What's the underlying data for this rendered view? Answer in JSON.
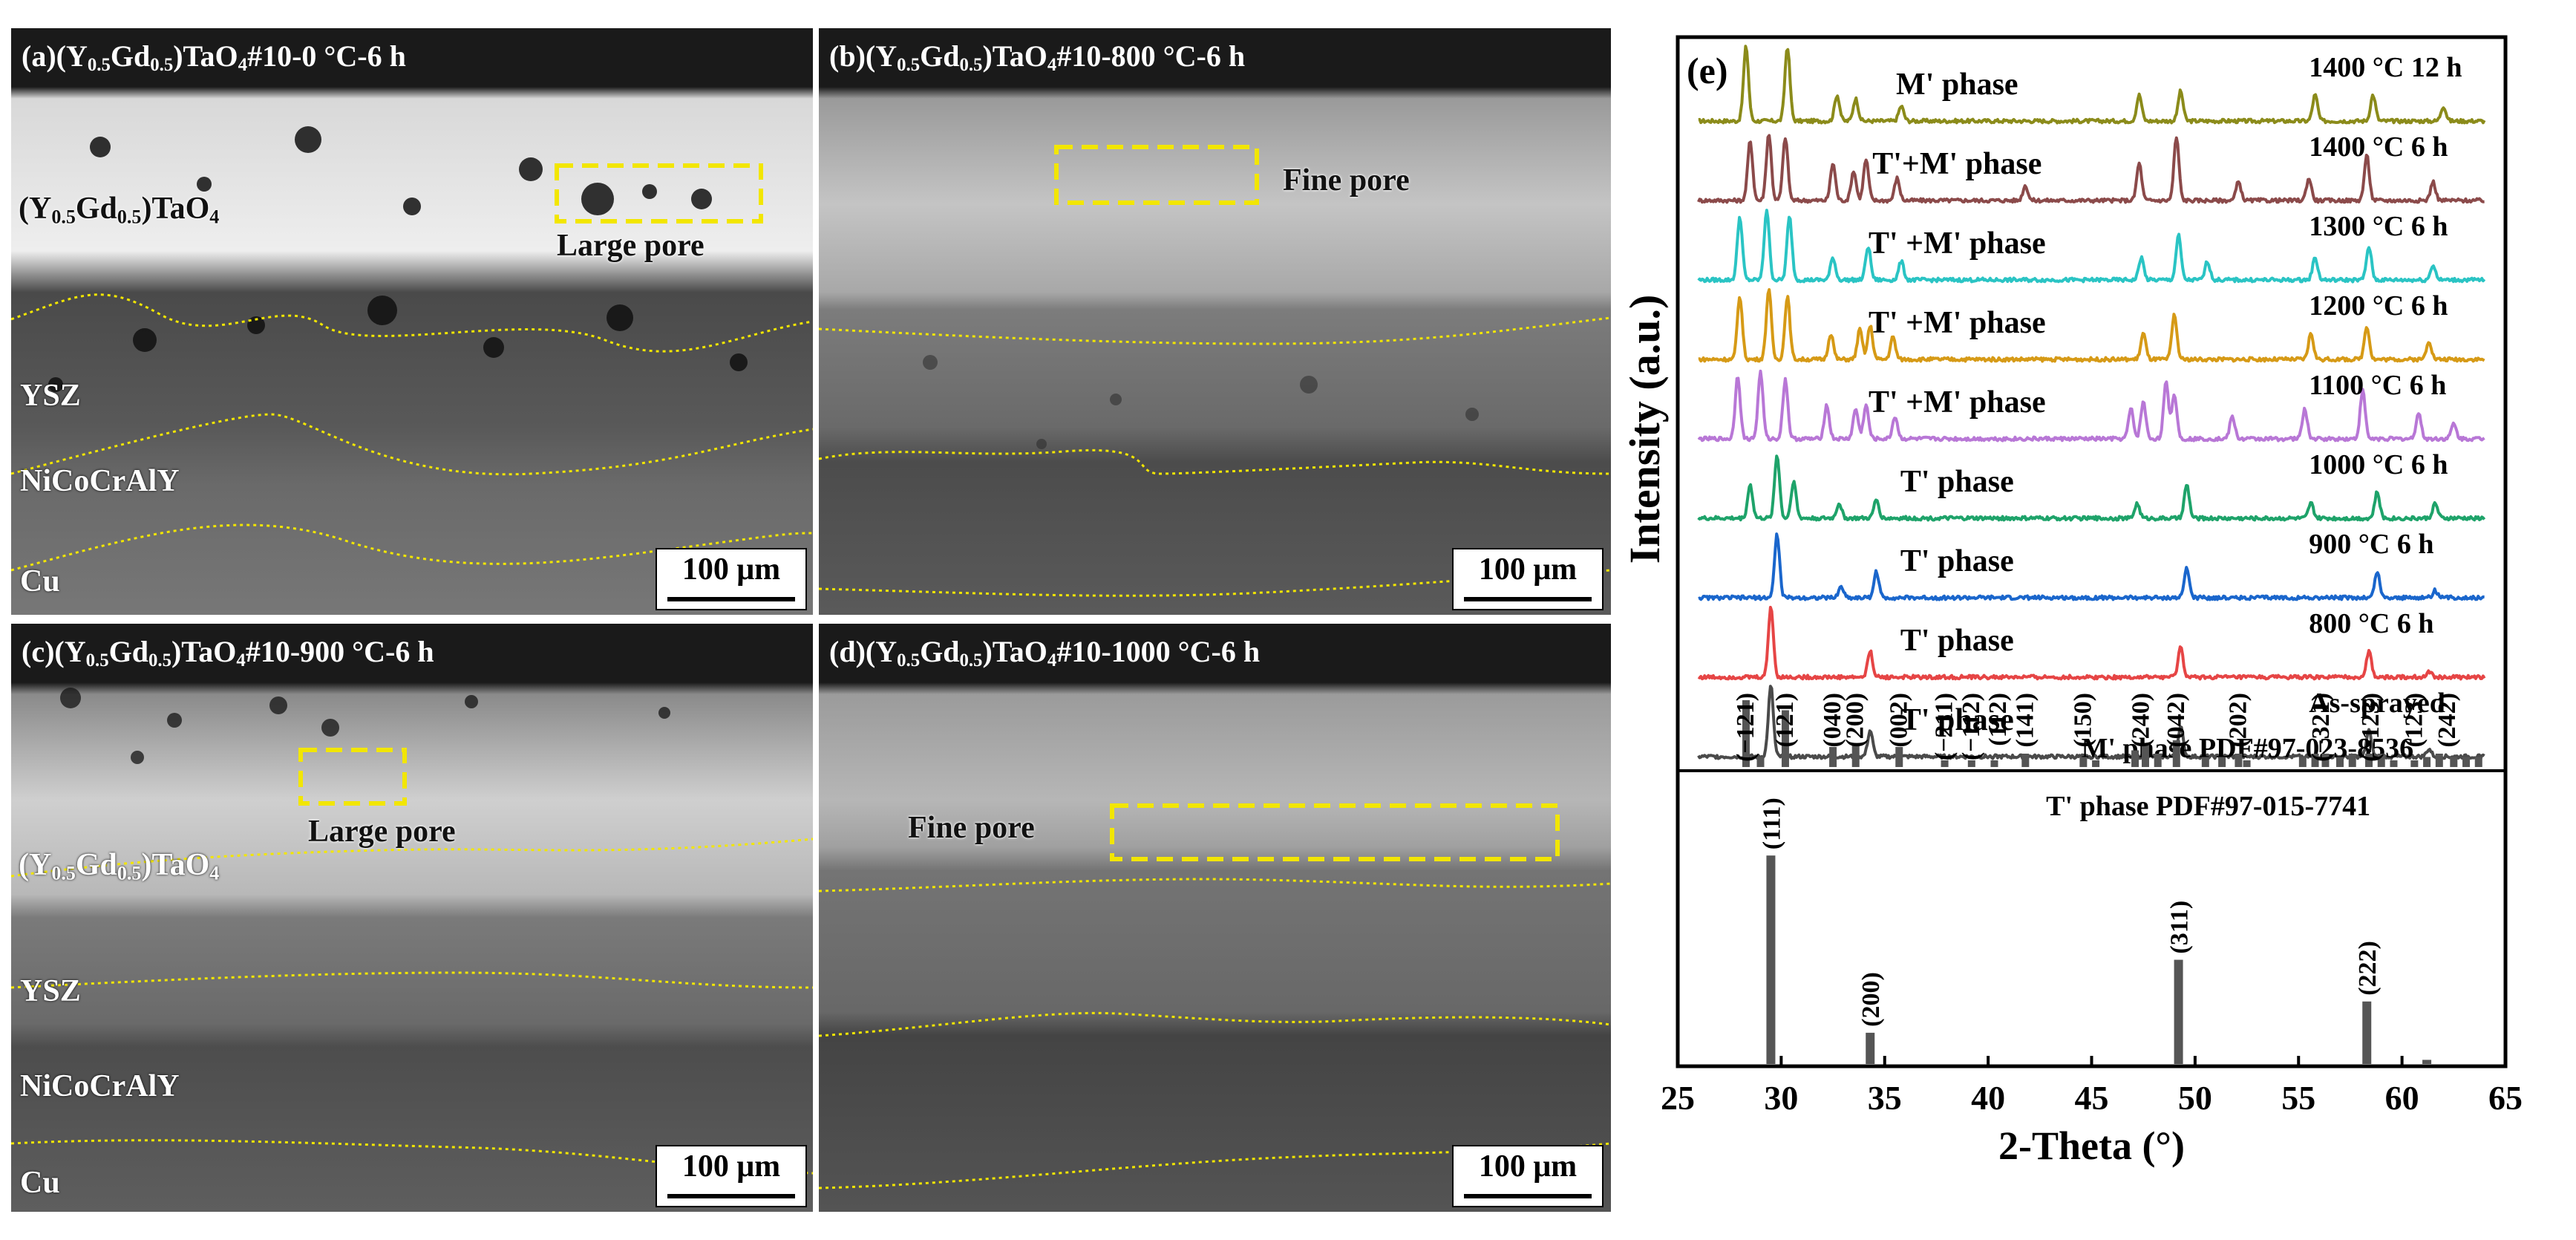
{
  "panels": [
    {
      "id": "a",
      "title_pre": "(a)(Y",
      "s1": "0.5",
      "mid": "Gd",
      "s2": "0.5",
      "post": ")TaO",
      "s3": "4",
      "tail": "#10-0 °C-6 h",
      "labels": {
        "coat": "(Y0.5Gd0.5)TaO4",
        "pore": "Large pore",
        "ysz": "YSZ",
        "bond": "NiCoCrAlY",
        "sub": "Cu"
      },
      "scale": "100 μm"
    },
    {
      "id": "b",
      "title_pre": "(b)(Y",
      "s1": "0.5",
      "mid": "Gd",
      "s2": "0.5",
      "post": ")TaO",
      "s3": "4",
      "tail": "#10-800 °C-6 h",
      "labels": {
        "pore": "Fine pore"
      },
      "scale": "100 μm"
    },
    {
      "id": "c",
      "title_pre": "(c)(Y",
      "s1": "0.5",
      "mid": "Gd",
      "s2": "0.5",
      "post": ")TaO",
      "s3": "4",
      "tail": "#10-900 °C-6 h",
      "labels": {
        "coat": "(Y0.5Gd0.5)TaO4",
        "pore": "Large pore",
        "ysz": "YSZ",
        "bond": "NiCoCrAlY",
        "sub": "Cu"
      },
      "scale": "100 μm"
    },
    {
      "id": "d",
      "title_pre": "(d)(Y",
      "s1": "0.5",
      "mid": "Gd",
      "s2": "0.5",
      "post": ")TaO",
      "s3": "4",
      "tail": "#10-1000 °C-6 h",
      "labels": {
        "pore": "Fine pore"
      },
      "scale": "100 μm"
    }
  ],
  "chart_data": {
    "type": "line",
    "panel_label": "(e)",
    "xlabel": "2-Theta (°)",
    "ylabel": "Intensity (a.u.)",
    "xlim": [
      25,
      65
    ],
    "xticks": [
      25,
      30,
      35,
      40,
      45,
      50,
      55,
      60,
      65
    ],
    "series": [
      {
        "name": "1400 °C 12 h",
        "phase": "M' phase",
        "color": "#8b8b1a",
        "peaks": [
          [
            28.3,
            1.0
          ],
          [
            30.3,
            1.0
          ],
          [
            32.7,
            0.35
          ],
          [
            33.6,
            0.3
          ],
          [
            35.8,
            0.2
          ],
          [
            47.3,
            0.35
          ],
          [
            49.3,
            0.4
          ],
          [
            55.8,
            0.35
          ],
          [
            58.6,
            0.35
          ],
          [
            62.0,
            0.2
          ]
        ]
      },
      {
        "name": "1400 °C 6 h",
        "phase": "T'+M' phase",
        "color": "#8b4a4a",
        "peaks": [
          [
            28.5,
            0.8
          ],
          [
            29.4,
            0.9
          ],
          [
            30.2,
            0.85
          ],
          [
            32.5,
            0.5
          ],
          [
            33.5,
            0.4
          ],
          [
            34.1,
            0.55
          ],
          [
            35.6,
            0.3
          ],
          [
            41.8,
            0.2
          ],
          [
            47.3,
            0.5
          ],
          [
            49.1,
            0.85
          ],
          [
            52.1,
            0.25
          ],
          [
            55.5,
            0.3
          ],
          [
            58.3,
            0.6
          ],
          [
            61.5,
            0.25
          ]
        ]
      },
      {
        "name": "1300 °C 6 h",
        "phase": "T' +M' phase",
        "color": "#2ac4c4",
        "peaks": [
          [
            28.0,
            0.85
          ],
          [
            29.3,
            0.95
          ],
          [
            30.4,
            0.85
          ],
          [
            32.5,
            0.3
          ],
          [
            34.2,
            0.45
          ],
          [
            35.8,
            0.25
          ],
          [
            47.4,
            0.3
          ],
          [
            49.2,
            0.6
          ],
          [
            50.6,
            0.25
          ],
          [
            55.8,
            0.3
          ],
          [
            58.4,
            0.45
          ],
          [
            61.5,
            0.2
          ]
        ]
      },
      {
        "name": "1200 °C 6 h",
        "phase": "T' +M' phase",
        "color": "#d69a16",
        "peaks": [
          [
            28.0,
            0.85
          ],
          [
            29.4,
            0.95
          ],
          [
            30.3,
            0.85
          ],
          [
            32.4,
            0.35
          ],
          [
            33.8,
            0.4
          ],
          [
            34.3,
            0.45
          ],
          [
            35.4,
            0.3
          ],
          [
            47.5,
            0.35
          ],
          [
            49.0,
            0.6
          ],
          [
            55.6,
            0.35
          ],
          [
            58.3,
            0.45
          ],
          [
            61.3,
            0.25
          ]
        ]
      },
      {
        "name": "1100 °C 6 h",
        "phase": "T' +M' phase",
        "color": "#b877d6",
        "peaks": [
          [
            27.9,
            0.85
          ],
          [
            29.0,
            0.9
          ],
          [
            30.2,
            0.8
          ],
          [
            32.2,
            0.45
          ],
          [
            33.6,
            0.4
          ],
          [
            34.1,
            0.45
          ],
          [
            35.5,
            0.3
          ],
          [
            46.9,
            0.4
          ],
          [
            47.5,
            0.5
          ],
          [
            48.6,
            0.75
          ],
          [
            49.0,
            0.6
          ],
          [
            51.8,
            0.3
          ],
          [
            55.3,
            0.4
          ],
          [
            58.1,
            0.65
          ],
          [
            60.8,
            0.35
          ],
          [
            62.5,
            0.2
          ]
        ]
      },
      {
        "name": "1000 °C 6 h",
        "phase": "T' phase",
        "color": "#1ea36a",
        "peaks": [
          [
            28.5,
            0.45
          ],
          [
            29.8,
            0.85
          ],
          [
            30.6,
            0.5
          ],
          [
            32.8,
            0.2
          ],
          [
            34.6,
            0.25
          ],
          [
            47.2,
            0.2
          ],
          [
            49.6,
            0.45
          ],
          [
            55.6,
            0.2
          ],
          [
            58.8,
            0.35
          ],
          [
            61.6,
            0.2
          ]
        ]
      },
      {
        "name": "900 °C 6 h",
        "phase": "T' phase",
        "color": "#1a66cc",
        "peaks": [
          [
            29.8,
            0.85
          ],
          [
            32.9,
            0.15
          ],
          [
            34.6,
            0.35
          ],
          [
            49.6,
            0.4
          ],
          [
            58.8,
            0.35
          ],
          [
            61.6,
            0.1
          ]
        ]
      },
      {
        "name": "800 °C 6 h",
        "phase": "T' phase",
        "color": "#e64545",
        "peaks": [
          [
            29.5,
            0.95
          ],
          [
            34.3,
            0.35
          ],
          [
            49.3,
            0.4
          ],
          [
            58.4,
            0.35
          ],
          [
            61.3,
            0.08
          ]
        ]
      },
      {
        "name": "As-sprayed",
        "phase": "T' phase",
        "color": "#4a4a4a",
        "peaks": [
          [
            29.5,
            0.95
          ],
          [
            34.3,
            0.35
          ],
          [
            49.3,
            0.4
          ],
          [
            58.4,
            0.35
          ],
          [
            61.3,
            0.1
          ]
        ]
      }
    ],
    "reference_M": {
      "label": "M' phase PDF#97-023-8536",
      "sticks": [
        [
          28.3,
          1.0
        ],
        [
          29.0,
          0.15
        ],
        [
          30.2,
          0.85
        ],
        [
          32.5,
          0.3
        ],
        [
          33.6,
          0.35
        ],
        [
          35.7,
          0.3
        ],
        [
          37.9,
          0.1
        ],
        [
          39.2,
          0.1
        ],
        [
          40.3,
          0.1
        ],
        [
          41.8,
          0.2
        ],
        [
          44.6,
          0.15
        ],
        [
          45.2,
          0.1
        ],
        [
          47.1,
          0.25
        ],
        [
          47.6,
          0.35
        ],
        [
          48.2,
          0.2
        ],
        [
          49.1,
          0.4
        ],
        [
          50.5,
          0.15
        ],
        [
          51.3,
          0.15
        ],
        [
          52.1,
          0.2
        ],
        [
          52.5,
          0.1
        ],
        [
          55.2,
          0.15
        ],
        [
          55.8,
          0.2
        ],
        [
          56.3,
          0.2
        ],
        [
          57.0,
          0.15
        ],
        [
          57.6,
          0.2
        ],
        [
          58.4,
          0.2
        ],
        [
          59.0,
          0.2
        ],
        [
          59.6,
          0.1
        ],
        [
          60.6,
          0.1
        ],
        [
          61.2,
          0.15
        ],
        [
          61.8,
          0.2
        ],
        [
          62.5,
          0.15
        ],
        [
          63.1,
          0.15
        ],
        [
          63.7,
          0.15
        ]
      ],
      "hkl": [
        {
          "x": 28.3,
          "t": "(−121)"
        },
        {
          "x": 30.2,
          "t": "(121)"
        },
        {
          "x": 32.5,
          "t": "(040)"
        },
        {
          "x": 33.6,
          "t": "(200)"
        },
        {
          "x": 35.7,
          "t": "(002)"
        },
        {
          "x": 37.9,
          "t": "(−211)"
        },
        {
          "x": 39.2,
          "t": "(−112)"
        },
        {
          "x": 40.5,
          "t": "(112)"
        },
        {
          "x": 41.8,
          "t": "(141)"
        },
        {
          "x": 44.6,
          "t": "(150)"
        },
        {
          "x": 47.4,
          "t": "(240)"
        },
        {
          "x": 49.1,
          "t": "(042)"
        },
        {
          "x": 52.1,
          "t": "(202)"
        },
        {
          "x": 56.1,
          "t": "(−321)"
        },
        {
          "x": 58.5,
          "t": "(−123)"
        },
        {
          "x": 60.6,
          "t": "(123)"
        },
        {
          "x": 62.2,
          "t": "(242)"
        }
      ]
    },
    "reference_T": {
      "label": "T'  phase  PDF#97-015-7741",
      "sticks": [
        [
          29.5,
          1.0
        ],
        [
          34.3,
          0.15
        ],
        [
          49.2,
          0.5
        ],
        [
          58.3,
          0.3
        ],
        [
          61.2,
          0.02
        ]
      ],
      "hkl": [
        {
          "x": 29.5,
          "t": "(111)"
        },
        {
          "x": 34.3,
          "t": "(200)"
        },
        {
          "x": 49.2,
          "t": "(311)"
        },
        {
          "x": 58.3,
          "t": "(222)"
        }
      ]
    }
  }
}
